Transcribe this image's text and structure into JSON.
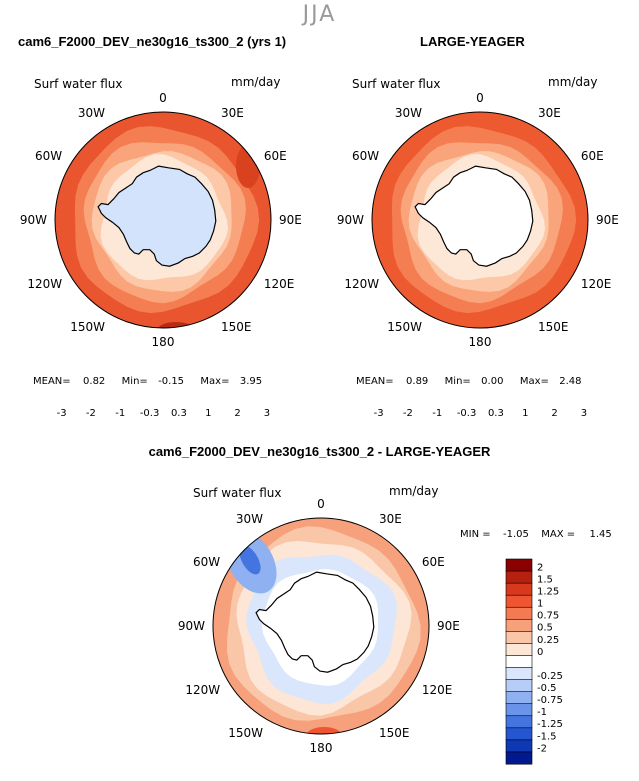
{
  "season": "JJA",
  "panels": [
    {
      "title": "cam6_F2000_DEV_ne30g16_ts300_2 (yrs 1)",
      "label_left": "Surf water flux",
      "label_right": "mm/day",
      "stats": {
        "mean_label": "MEAN=",
        "mean": "0.82",
        "min_label": "Min=",
        "min": "-0.15",
        "max_label": "Max=",
        "max": "3.95"
      }
    },
    {
      "title": "LARGE-YEAGER",
      "label_left": "Surf water flux",
      "label_right": "mm/day",
      "stats": {
        "mean_label": "MEAN=",
        "mean": "0.89",
        "min_label": "Min=",
        "min": "0.00",
        "max_label": "Max=",
        "max": "2.48"
      }
    }
  ],
  "diff": {
    "title": "cam6_F2000_DEV_ne30g16_ts300_2 - LARGE-YEAGER",
    "label_left": "Surf water flux",
    "label_right": "mm/day",
    "minmax": {
      "min_label": "MIN =",
      "min": "-1.05",
      "max_label": "MAX =",
      "max": "1.45"
    }
  },
  "longitudes": [
    "0",
    "30E",
    "60E",
    "90E",
    "120E",
    "150E",
    "180",
    "150W",
    "120W",
    "90W",
    "60W",
    "30W"
  ],
  "colorbar_top": {
    "ticks": [
      "-3",
      "-2",
      "-1",
      "-0.3",
      "0.3",
      "1",
      "2",
      "3"
    ],
    "colors": [
      "#00008b",
      "#0c2fb5",
      "#2e62e0",
      "#5f8bf0",
      "#9ab8f5",
      "#d2e3fb",
      "#fde8d7",
      "#fcc8a8",
      "#f9a47a",
      "#f47a4e",
      "#e8512c",
      "#c9301a",
      "#9a0a0a"
    ]
  },
  "colorbar_diff": {
    "ticks": [
      "2",
      "1.5",
      "1.25",
      "1",
      "0.75",
      "0.5",
      "0.25",
      "0",
      "-0.25",
      "-0.5",
      "-0.75",
      "-1",
      "-1.25",
      "-1.5",
      "-2"
    ],
    "colors": [
      "#8b0000",
      "#b5200f",
      "#d8391d",
      "#ee5530",
      "#f37a52",
      "#f7a07c",
      "#fac6a8",
      "#fde6d5",
      "#ffffff",
      "#d9e6fb",
      "#b6cdf7",
      "#8fb0f1",
      "#6a93ea",
      "#4374e0",
      "#2356d0",
      "#0f38b3",
      "#00198f"
    ]
  }
}
